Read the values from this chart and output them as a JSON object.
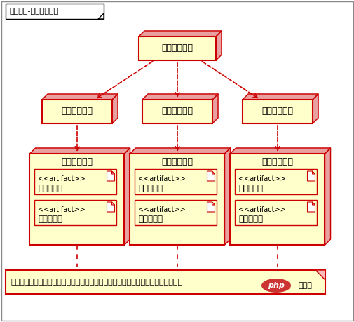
{
  "title": "电商案例-应用集群部署",
  "bg_color": "#ffffff",
  "box_fill": "#ffffcc",
  "box_edge": "#cc0000",
  "d3_color": "#e8a0a0",
  "bottom_text": "核心非核心系统组合部署，在大流量时，可以关闭非核心子系统，实现自动优雅降级",
  "browser_label": "客户端浏览器",
  "lb_labels": [
    "产品负载均衡",
    "购物负载均衡",
    "支付负载均衡"
  ],
  "sys_labels": [
    "产品评论系统",
    "购物客服系统",
    "支付接口系统"
  ],
  "sys_artifacts": [
    [
      "产品子系统",
      "评论子系统"
    ],
    [
      "购物子系统",
      "客服子系统"
    ],
    [
      "支付子系统",
      "接口子系统"
    ]
  ],
  "arrow_color": "#cc0000",
  "font_size_title": 8,
  "font_size_node": 9,
  "font_size_art_label": 8,
  "font_size_art_name": 8.5,
  "font_size_bottom": 8
}
